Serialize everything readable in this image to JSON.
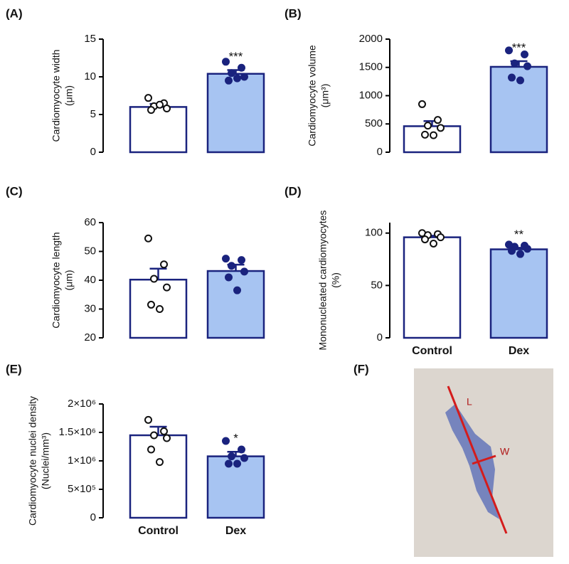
{
  "chart_data": [
    {
      "type": "bar",
      "panel": "(A)",
      "ylabel": [
        "Cardiomyocyte width",
        "(μm)"
      ],
      "categories": [
        null,
        null
      ],
      "values": [
        6.0,
        10.4
      ],
      "errors": [
        0.4,
        0.5
      ],
      "points": [
        [
          7.2,
          6.5,
          6.1,
          5.8,
          5.6,
          6.3
        ],
        [
          12.0,
          11.2,
          10.5,
          10.0,
          9.5,
          9.8
        ]
      ],
      "colors": [
        "#ffffff",
        "#a7c4f2"
      ],
      "significance": [
        null,
        "***"
      ],
      "ylim": [
        0,
        15
      ],
      "yticks": [
        0,
        5,
        10,
        15
      ]
    },
    {
      "type": "bar",
      "panel": "(B)",
      "ylabel": [
        "Cardiomyocyte volume",
        "(μm³)"
      ],
      "categories": [
        null,
        null
      ],
      "values": [
        460,
        1510
      ],
      "errors": [
        90,
        100
      ],
      "points": [
        [
          850,
          570,
          470,
          430,
          310,
          300
        ],
        [
          1800,
          1730,
          1570,
          1520,
          1320,
          1270
        ]
      ],
      "colors": [
        "#ffffff",
        "#a7c4f2"
      ],
      "significance": [
        null,
        "***"
      ],
      "ylim": [
        0,
        2000
      ],
      "yticks": [
        0,
        500,
        1000,
        1500,
        2000
      ]
    },
    {
      "type": "bar",
      "panel": "(C)",
      "ylabel": [
        "Cardiomyocyte length",
        "(μm)"
      ],
      "categories": [
        null,
        null
      ],
      "values": [
        40.2,
        43.2
      ],
      "errors": [
        3.8,
        2.2
      ],
      "points": [
        [
          54.5,
          45.5,
          40.5,
          37.5,
          31.5,
          30
        ],
        [
          47.5,
          47,
          45,
          43,
          41,
          36.5
        ]
      ],
      "colors": [
        "#ffffff",
        "#a7c4f2"
      ],
      "ylim": [
        20,
        60
      ],
      "yticks": [
        20,
        30,
        40,
        50,
        60
      ]
    },
    {
      "type": "bar",
      "panel": "(D)",
      "ylabel": [
        "Mononucleated cardiomyocytes",
        "(%)"
      ],
      "categories": [
        "Control",
        "Dex"
      ],
      "values": [
        96,
        84.5
      ],
      "errors": [
        1.5,
        1.5
      ],
      "points": [
        [
          100,
          99,
          98,
          96,
          94,
          90
        ],
        [
          89,
          88,
          87,
          85,
          83,
          80
        ]
      ],
      "colors": [
        "#ffffff",
        "#a7c4f2"
      ],
      "significance": [
        null,
        "**"
      ],
      "ylim": [
        0,
        110
      ],
      "yticks": [
        0,
        50,
        100
      ]
    },
    {
      "type": "bar",
      "panel": "(E)",
      "ylabel": [
        "Cardiomyocyte nuclei density",
        "(Nuclei/mm³)"
      ],
      "categories": [
        "Control",
        "Dex"
      ],
      "values": [
        1450000,
        1080000
      ],
      "errors": [
        150000,
        80000
      ],
      "points": [
        [
          1720000,
          1520000,
          1450000,
          1400000,
          1200000,
          980000
        ],
        [
          1350000,
          1200000,
          1080000,
          1050000,
          950000,
          950000
        ]
      ],
      "colors": [
        "#ffffff",
        "#a7c4f2"
      ],
      "significance": [
        null,
        "*"
      ],
      "ylim": [
        0,
        2000000
      ],
      "yticks": [
        0,
        {
          "value": 500000,
          "label": "5×10⁵"
        },
        {
          "value": 1000000,
          "label": "1×10⁶"
        },
        {
          "value": 1500000,
          "label": "1.5×10⁶"
        },
        {
          "value": 2000000,
          "label": "2×10⁶"
        }
      ]
    }
  ],
  "image_panel": {
    "panel": "(F)",
    "length_label": "L",
    "width_label": "W"
  }
}
